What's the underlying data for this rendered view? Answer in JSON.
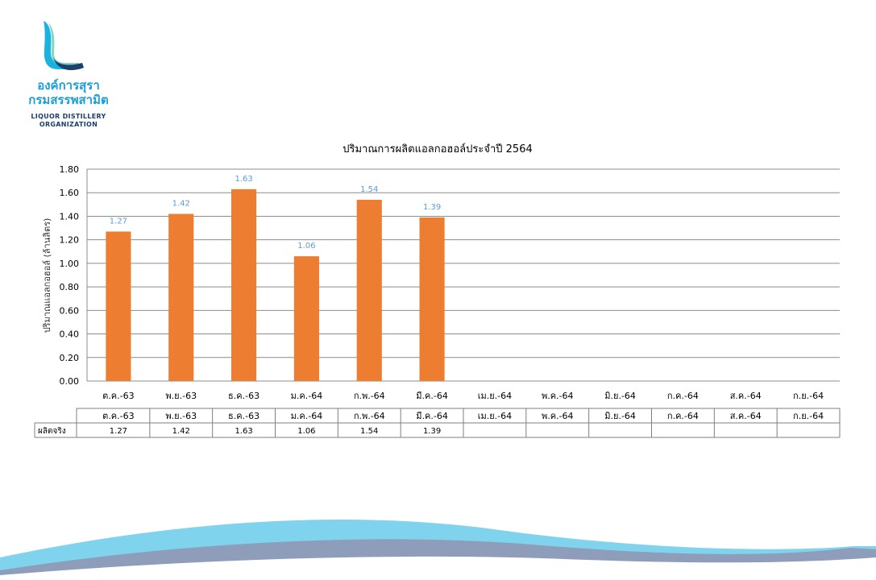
{
  "logo": {
    "name_th_line1": "องค์การสุรา",
    "name_th_line2": "กรมสรรพสามิต",
    "name_en_line1": "LIQUOR DISTILLERY",
    "name_en_line2": "ORGANIZATION"
  },
  "chart_data": {
    "type": "bar",
    "title": "ปริมาณการผลิตแอลกอฮอล์ประจำปี  2564",
    "ylabel": "ปริมาณแอลกอฮอล์ (ล้านลิตร)",
    "xlabel": "",
    "ylim": [
      0,
      1.8
    ],
    "yticks": [
      "0.00",
      "0.20",
      "0.40",
      "0.60",
      "0.80",
      "1.00",
      "1.20",
      "1.40",
      "1.60",
      "1.80"
    ],
    "grid": true,
    "categories": [
      "ต.ค.-63",
      "พ.ย.-63",
      "ธ.ค.-63",
      "ม.ค.-64",
      "ก.พ.-64",
      "มี.ค.-64",
      "เม.ย.-64",
      "พ.ค.-64",
      "มิ.ย.-64",
      "ก.ค.-64",
      "ส.ค.-64",
      "ก.ย.-64"
    ],
    "series": [
      {
        "name": "ผลิตจริง",
        "values": [
          1.27,
          1.42,
          1.63,
          1.06,
          1.54,
          1.39,
          null,
          null,
          null,
          null,
          null,
          null
        ],
        "labels": [
          "1.27",
          "1.42",
          "1.63",
          "1.06",
          "1.54",
          "1.39",
          "",
          "",
          "",
          "",
          "",
          ""
        ]
      }
    ],
    "colors": {
      "bar": "#ed7d31",
      "data_label": "#5b9bd5",
      "grid": "#8c8c8c"
    }
  }
}
